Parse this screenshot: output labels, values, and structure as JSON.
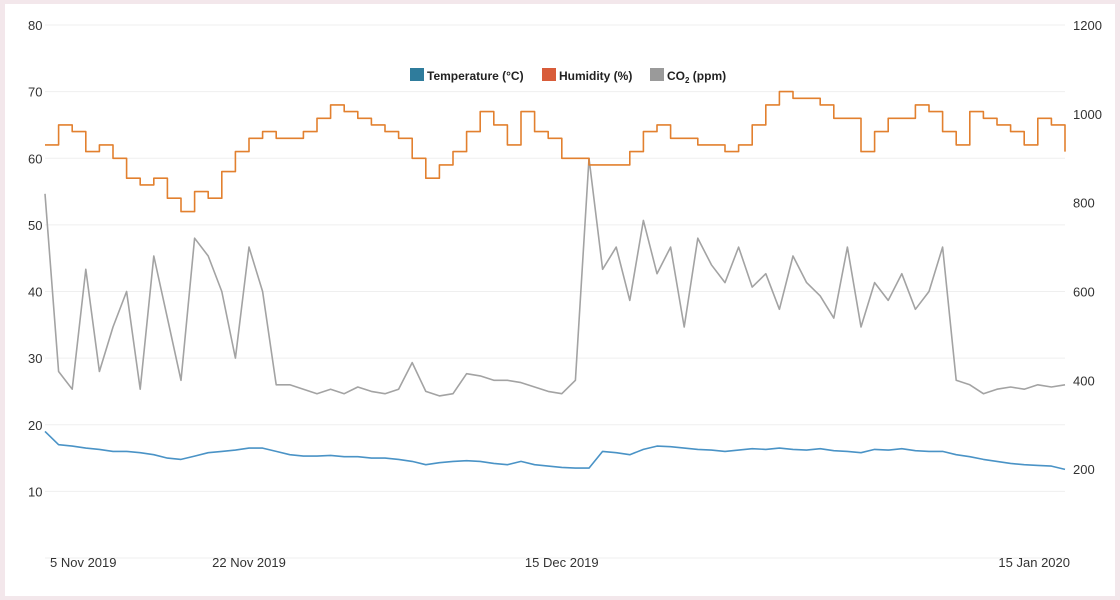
{
  "chart_data": {
    "type": "line",
    "title": "",
    "legend_placement": "top-center",
    "grid": true,
    "y_left": {
      "ticks": [
        10,
        20,
        30,
        40,
        50,
        60,
        70,
        80
      ],
      "range": [
        0,
        80
      ]
    },
    "y_right": {
      "ticks": [
        200,
        400,
        600,
        800,
        1000,
        1200
      ],
      "range": [
        0,
        1200
      ]
    },
    "x_ticks": [
      {
        "date": "2019-11-05",
        "label": "5 Nov 2019"
      },
      {
        "date": "2019-11-22",
        "label": "22 Nov 2019"
      },
      {
        "date": "2019-12-15",
        "label": "15 Dec 2019"
      },
      {
        "date": "2020-01-15",
        "label": "15 Jan 2020"
      }
    ],
    "x": [
      "2019-11-07",
      "2019-11-08",
      "2019-11-09",
      "2019-11-10",
      "2019-11-11",
      "2019-11-12",
      "2019-11-13",
      "2019-11-14",
      "2019-11-15",
      "2019-11-16",
      "2019-11-17",
      "2019-11-18",
      "2019-11-19",
      "2019-11-20",
      "2019-11-21",
      "2019-11-22",
      "2019-11-23",
      "2019-11-24",
      "2019-11-25",
      "2019-11-26",
      "2019-11-27",
      "2019-11-28",
      "2019-11-29",
      "2019-11-30",
      "2019-12-01",
      "2019-12-02",
      "2019-12-03",
      "2019-12-04",
      "2019-12-05",
      "2019-12-06",
      "2019-12-07",
      "2019-12-08",
      "2019-12-09",
      "2019-12-10",
      "2019-12-11",
      "2019-12-12",
      "2019-12-13",
      "2019-12-14",
      "2019-12-15",
      "2019-12-16",
      "2019-12-17",
      "2019-12-18",
      "2019-12-19",
      "2019-12-20",
      "2019-12-21",
      "2019-12-22",
      "2019-12-23",
      "2019-12-24",
      "2019-12-25",
      "2019-12-26",
      "2019-12-27",
      "2019-12-28",
      "2019-12-29",
      "2019-12-30",
      "2019-12-31",
      "2020-01-01",
      "2020-01-02",
      "2020-01-03",
      "2020-01-04",
      "2020-01-05",
      "2020-01-06",
      "2020-01-07",
      "2020-01-08",
      "2020-01-09",
      "2020-01-10",
      "2020-01-11",
      "2020-01-12",
      "2020-01-13",
      "2020-01-14",
      "2020-01-15",
      "2020-01-16",
      "2020-01-17",
      "2020-01-18",
      "2020-01-19",
      "2020-01-20",
      "2020-01-21"
    ],
    "series": [
      {
        "name": "Temperature (°C)",
        "axis": "left",
        "color": "#4a93c6",
        "swatch": "#2f7c9c",
        "values": [
          19,
          17,
          16.8,
          16.5,
          16.3,
          16,
          16,
          15.8,
          15.5,
          15,
          14.8,
          15.3,
          15.8,
          16,
          16.2,
          16.5,
          16.5,
          16,
          15.5,
          15.3,
          15.3,
          15.4,
          15.2,
          15.2,
          15,
          15,
          14.8,
          14.5,
          14,
          14.3,
          14.5,
          14.6,
          14.5,
          14.2,
          14,
          14.5,
          14,
          13.8,
          13.6,
          13.5,
          13.5,
          16,
          15.8,
          15.5,
          16.3,
          16.8,
          16.7,
          16.5,
          16.3,
          16.2,
          16,
          16.2,
          16.4,
          16.3,
          16.5,
          16.3,
          16.2,
          16.4,
          16.1,
          16,
          15.8,
          16.3,
          16.2,
          16.4,
          16.1,
          16,
          16,
          15.5,
          15.2,
          14.8,
          14.5,
          14.2,
          14,
          13.9,
          13.8,
          13.3
        ]
      },
      {
        "name": "Humidity (%)",
        "axis": "left",
        "color": "#e2802f",
        "swatch": "#d85c3a",
        "step": true,
        "values": [
          62,
          65,
          64,
          61,
          62,
          60,
          57,
          56,
          57,
          54,
          52,
          55,
          54,
          58,
          61,
          63,
          64,
          63,
          63,
          64,
          66,
          68,
          67,
          66,
          65,
          64,
          63,
          60,
          57,
          59,
          61,
          64,
          67,
          65,
          62,
          67,
          64,
          63,
          60,
          60,
          59,
          59,
          59,
          61,
          64,
          65,
          63,
          63,
          62,
          62,
          61,
          62,
          65,
          68,
          70,
          69,
          69,
          68,
          66,
          66,
          61,
          64,
          66,
          66,
          68,
          67,
          64,
          62,
          67,
          66,
          65,
          64,
          62,
          66,
          65,
          61
        ]
      },
      {
        "name": "CO2 (ppm)",
        "axis": "right",
        "color": "#a3a3a3",
        "swatch": "#9a9a9a",
        "values": [
          820,
          420,
          380,
          650,
          420,
          520,
          600,
          380,
          680,
          540,
          400,
          720,
          680,
          600,
          450,
          700,
          600,
          390,
          390,
          380,
          370,
          380,
          370,
          385,
          375,
          370,
          380,
          440,
          375,
          365,
          370,
          415,
          410,
          400,
          400,
          395,
          385,
          375,
          370,
          400,
          900,
          650,
          700,
          580,
          760,
          640,
          700,
          520,
          720,
          660,
          620,
          700,
          610,
          640,
          560,
          680,
          620,
          590,
          540,
          700,
          520,
          620,
          580,
          640,
          560,
          600,
          700,
          400,
          390,
          370,
          380,
          385,
          380,
          390,
          385,
          390
        ]
      }
    ]
  }
}
